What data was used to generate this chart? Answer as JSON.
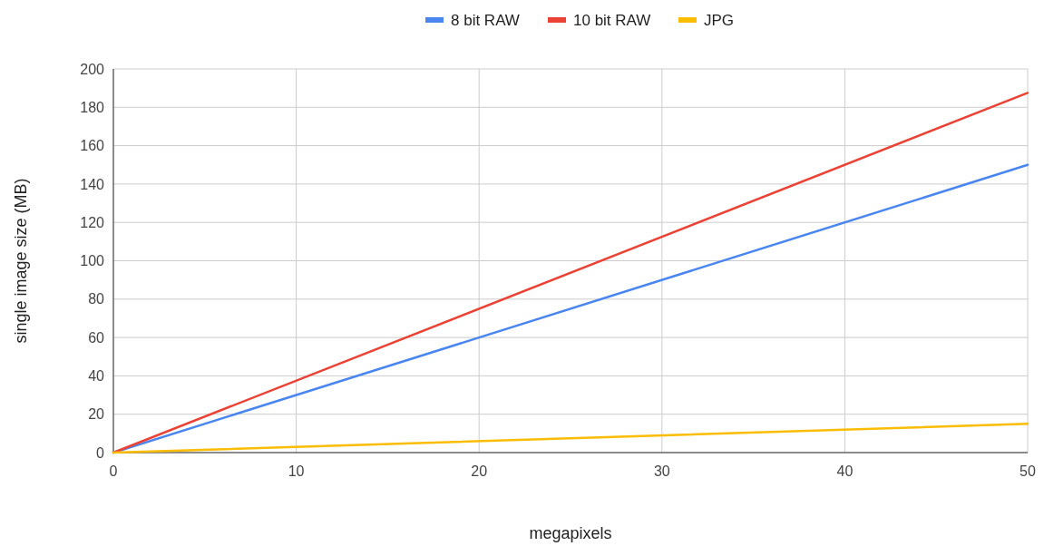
{
  "chart_data": {
    "type": "line",
    "xlabel": "megapixels",
    "ylabel": "single image size (MB)",
    "x": [
      0,
      50
    ],
    "series": [
      {
        "name": "8 bit RAW",
        "color": "#4a86f0",
        "values": [
          0,
          150
        ]
      },
      {
        "name": "10 bit RAW",
        "color": "#ea4335",
        "values": [
          0,
          187.5
        ]
      },
      {
        "name": "JPG",
        "color": "#fbbc04",
        "values": [
          0,
          15
        ]
      }
    ],
    "xlim": [
      0,
      50
    ],
    "xticks": [
      0,
      10,
      20,
      30,
      40,
      50
    ],
    "ylim": [
      0,
      200
    ],
    "yticks": [
      0,
      20,
      40,
      60,
      80,
      100,
      120,
      140,
      160,
      180,
      200
    ],
    "grid": true,
    "legend": "top",
    "marker": "none",
    "line_style": "solid"
  }
}
